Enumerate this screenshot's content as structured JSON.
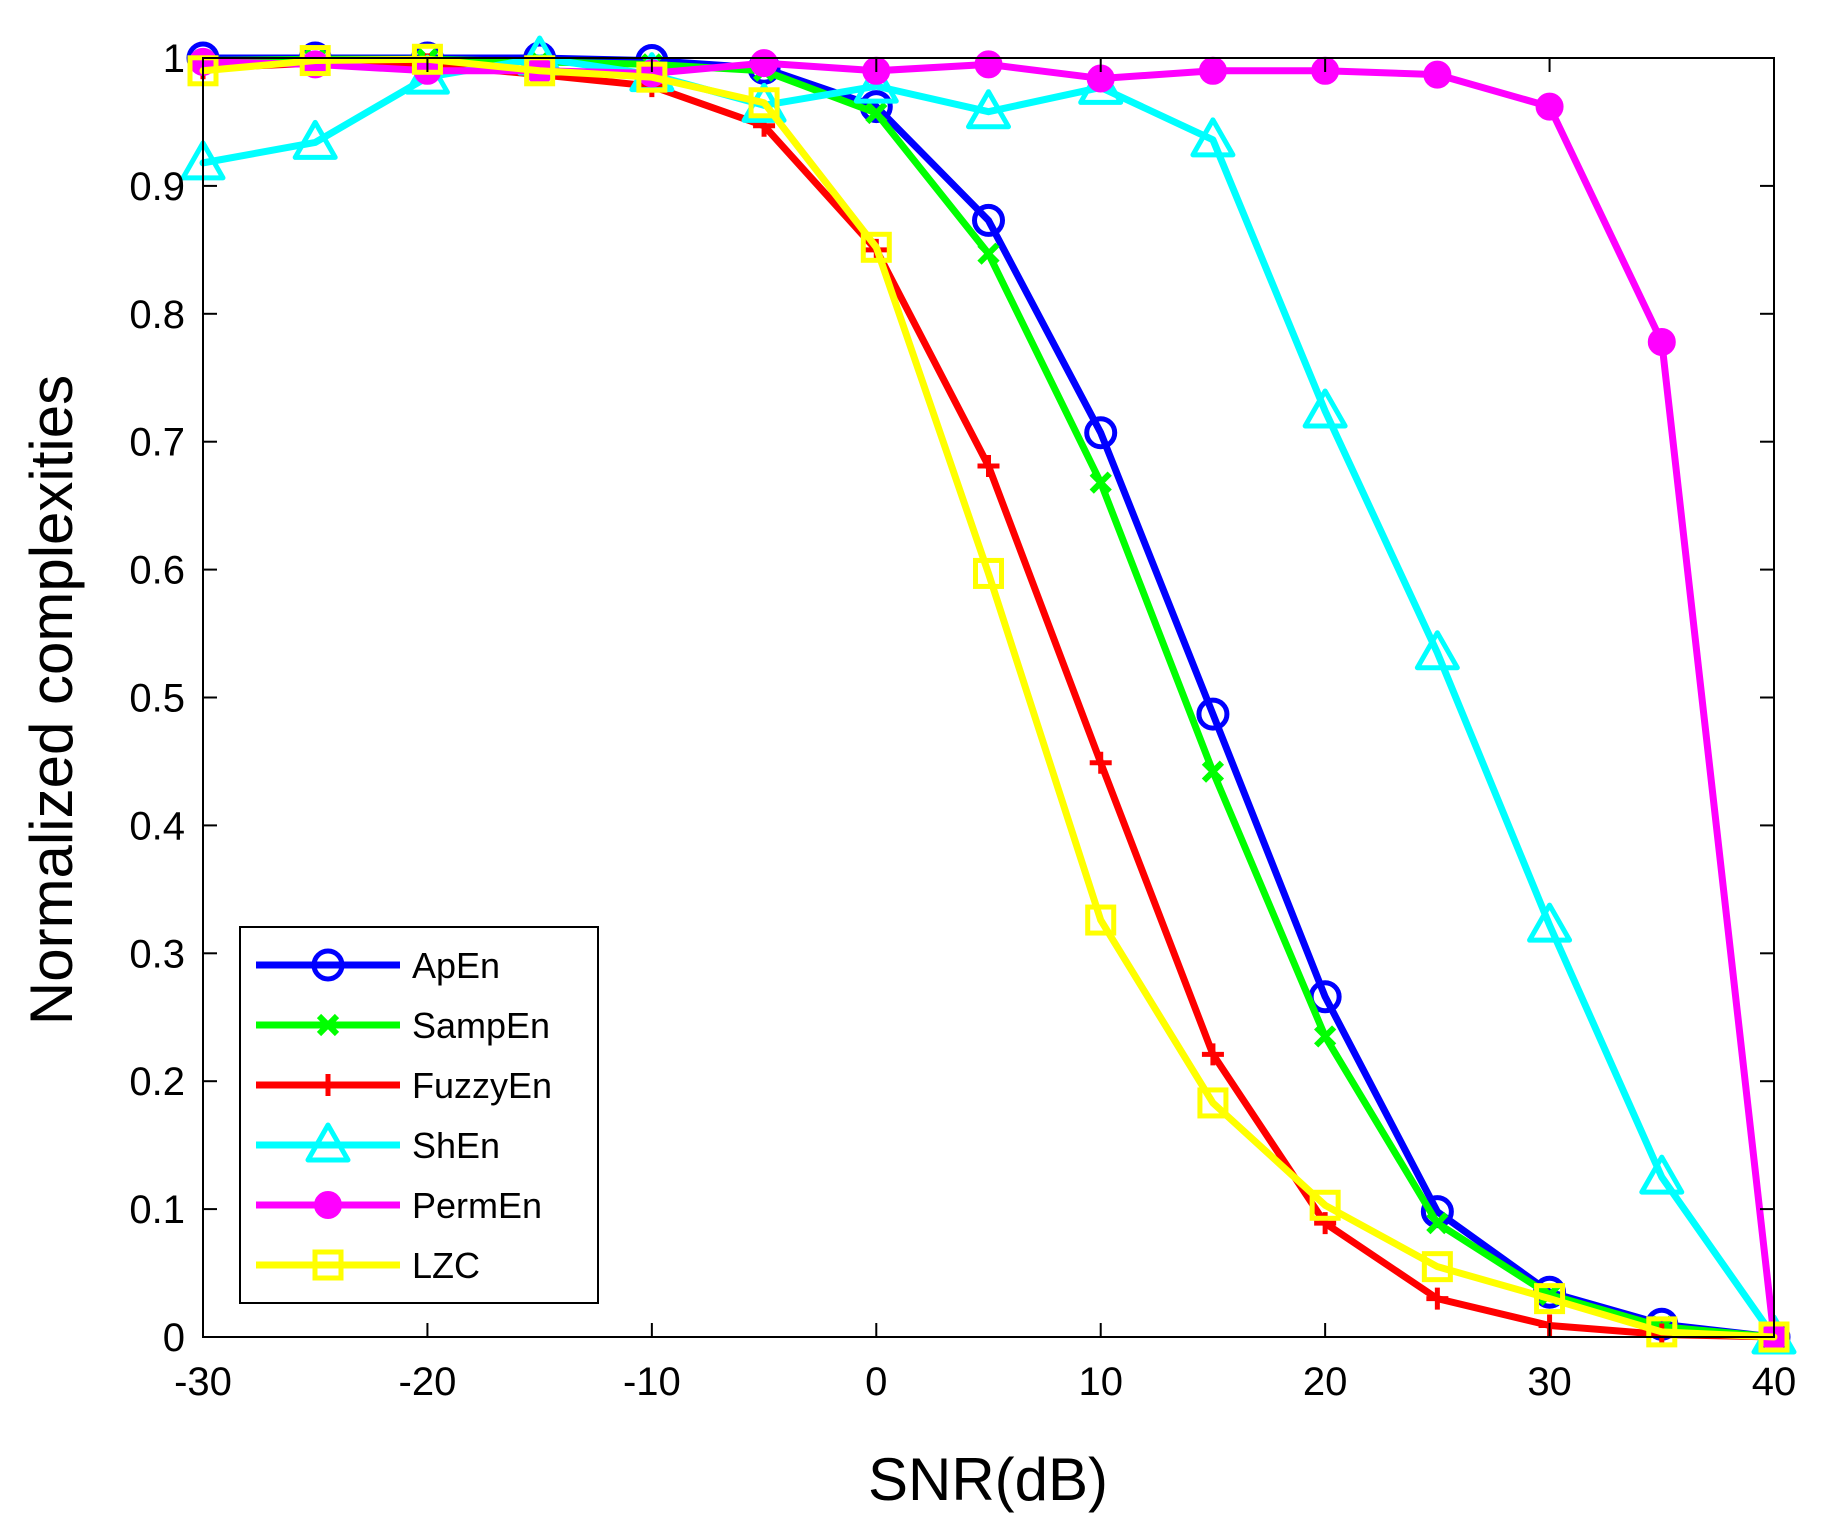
{
  "chart_data": {
    "type": "line",
    "title": "",
    "xlabel": "SNR(dB)",
    "ylabel": "Normalized complexities",
    "xlim": [
      -30,
      40
    ],
    "ylim": [
      0,
      1
    ],
    "xticks": [
      -30,
      -20,
      -10,
      0,
      10,
      20,
      30,
      40
    ],
    "xtick_labels": [
      "-30",
      "-20",
      "-10",
      "0",
      "10",
      "20",
      "30",
      "40"
    ],
    "yticks": [
      0,
      0.1,
      0.2,
      0.3,
      0.4,
      0.5,
      0.6,
      0.7,
      0.8,
      0.9,
      1
    ],
    "ytick_labels": [
      "0",
      "0.1",
      "0.2",
      "0.3",
      "0.4",
      "0.5",
      "0.6",
      "0.7",
      "0.8",
      "0.9",
      "1"
    ],
    "grid": false,
    "legend_position": "bottom-left",
    "x": [
      -30,
      -25,
      -20,
      -15,
      -10,
      -5,
      0,
      5,
      10,
      15,
      20,
      25,
      30,
      35,
      40
    ],
    "series": [
      {
        "name": "ApEn",
        "color": "#0000ff",
        "marker": "circle",
        "values": [
          1.0,
          1.0,
          1.0,
          1.0,
          0.998,
          0.992,
          0.962,
          0.873,
          0.707,
          0.487,
          0.266,
          0.098,
          0.035,
          0.01,
          0.0
        ]
      },
      {
        "name": "SampEn",
        "color": "#00ff00",
        "marker": "x",
        "values": [
          0.998,
          0.999,
          0.999,
          0.997,
          0.995,
          0.99,
          0.957,
          0.847,
          0.668,
          0.442,
          0.235,
          0.089,
          0.033,
          0.008,
          0.0
        ]
      },
      {
        "name": "FuzzyEn",
        "color": "#ff0000",
        "marker": "plus",
        "values": [
          0.992,
          0.996,
          0.995,
          0.987,
          0.978,
          0.947,
          0.85,
          0.681,
          0.449,
          0.221,
          0.089,
          0.03,
          0.009,
          0.002,
          0.0
        ]
      },
      {
        "name": "ShEn",
        "color": "#00ffff",
        "marker": "triangle",
        "values": [
          0.918,
          0.934,
          0.985,
          1.0,
          0.987,
          0.963,
          0.978,
          0.958,
          0.977,
          0.936,
          0.724,
          0.535,
          0.322,
          0.125,
          0.0
        ]
      },
      {
        "name": "PermEn",
        "color": "#ff00ff",
        "marker": "dot",
        "values": [
          0.997,
          0.995,
          0.99,
          0.99,
          0.988,
          0.996,
          0.99,
          0.995,
          0.984,
          0.99,
          0.99,
          0.987,
          0.962,
          0.778,
          0.0
        ]
      },
      {
        "name": "LZC",
        "color": "#ffff00",
        "marker": "square",
        "values": [
          0.99,
          0.998,
          0.999,
          0.99,
          0.985,
          0.965,
          0.852,
          0.597,
          0.326,
          0.183,
          0.103,
          0.055,
          0.03,
          0.004,
          0.0
        ]
      }
    ]
  }
}
